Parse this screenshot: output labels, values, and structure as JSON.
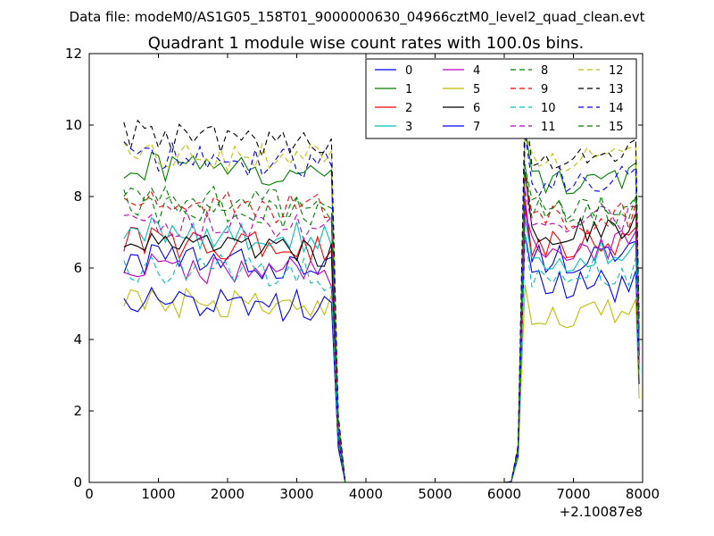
{
  "suptitle": "Data file: modeM0/AS1G05_158T01_9000000630_04966cztM0_level2_quad_clean.evt",
  "chart_data": {
    "type": "line",
    "title": "Quadrant 1 module wise count rates with 100.0s bins.",
    "xlabel": "",
    "ylabel": "",
    "x_offset_label": "+2.10087e8",
    "xlim": [
      0,
      8000
    ],
    "ylim": [
      0,
      12
    ],
    "xticks": [
      0,
      1000,
      2000,
      3000,
      4000,
      5000,
      6000,
      7000,
      8000
    ],
    "yticks": [
      0,
      2,
      4,
      6,
      8,
      10,
      12
    ],
    "grid": false,
    "legend": {
      "placement": "top-right",
      "columns": 4
    },
    "segments": [
      {
        "x_start": 500,
        "x_end": 3500,
        "step": 100
      },
      {
        "x_start": 6300,
        "x_end": 7900,
        "step": 100
      }
    ],
    "series": [
      {
        "name": "0",
        "color": "#0000ff",
        "dash": "solid",
        "level1": 6.0,
        "level2": 6.3
      },
      {
        "name": "1",
        "color": "#008000",
        "dash": "solid",
        "level1": 8.6,
        "level2": 8.5
      },
      {
        "name": "2",
        "color": "#ff0000",
        "dash": "solid",
        "level1": 6.5,
        "level2": 6.7
      },
      {
        "name": "3",
        "color": "#00bfbf",
        "dash": "solid",
        "level1": 6.8,
        "level2": 6.3
      },
      {
        "name": "4",
        "color": "#bf00bf",
        "dash": "solid",
        "level1": 5.8,
        "level2": 6.6
      },
      {
        "name": "5",
        "color": "#bfbf00",
        "dash": "solid",
        "level1": 4.8,
        "level2": 4.7
      },
      {
        "name": "6",
        "color": "#000000",
        "dash": "solid",
        "level1": 6.4,
        "level2": 7.1
      },
      {
        "name": "7",
        "color": "#0000ff",
        "dash": "solid",
        "level1": 4.9,
        "level2": 5.5
      },
      {
        "name": "8",
        "color": "#008000",
        "dash": "dashed",
        "level1": 7.7,
        "level2": 7.6
      },
      {
        "name": "9",
        "color": "#ff0000",
        "dash": "dashed",
        "level1": 7.6,
        "level2": 7.4
      },
      {
        "name": "10",
        "color": "#00bfbf",
        "dash": "dashed",
        "level1": 5.8,
        "level2": 5.9
      },
      {
        "name": "11",
        "color": "#bf00bf",
        "dash": "dashed",
        "level1": 7.0,
        "level2": 7.3
      },
      {
        "name": "12",
        "color": "#bfbf00",
        "dash": "dashed",
        "level1": 9.0,
        "level2": 9.0
      },
      {
        "name": "13",
        "color": "#000000",
        "dash": "dashed",
        "level1": 9.5,
        "level2": 9.2
      },
      {
        "name": "14",
        "color": "#0000ff",
        "dash": "dashed",
        "level1": 8.9,
        "level2": 8.4
      },
      {
        "name": "15",
        "color": "#008000",
        "dash": "dashed",
        "level1": 7.5,
        "level2": 7.6
      }
    ]
  }
}
